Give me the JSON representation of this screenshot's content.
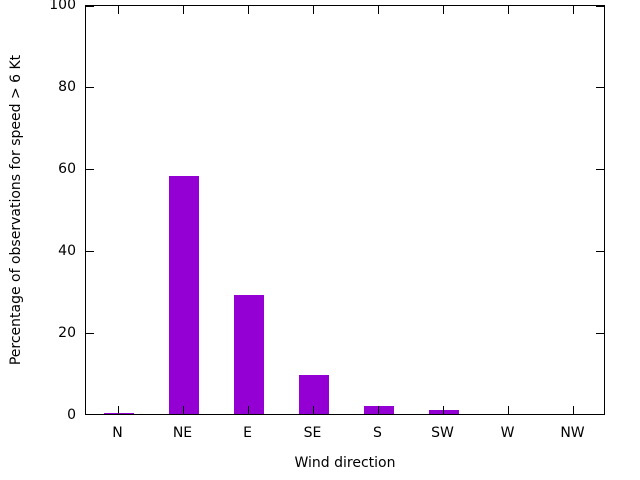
{
  "chart_data": {
    "type": "bar",
    "title": "",
    "categories": [
      "N",
      "NE",
      "E",
      "SE",
      "S",
      "SW",
      "W",
      "NW"
    ],
    "values": [
      0.3,
      58,
      29,
      9.5,
      2,
      1,
      0,
      0
    ],
    "xlabel": "Wind direction",
    "ylabel": "Percentage of observations for speed > 6 Kt",
    "ylim": [
      0,
      100
    ],
    "yticks": [
      0,
      20,
      40,
      60,
      80,
      100
    ],
    "bar_color": "#9400d3",
    "axis_color": "#000000",
    "background": "#ffffff",
    "grid": false,
    "legend": false
  }
}
